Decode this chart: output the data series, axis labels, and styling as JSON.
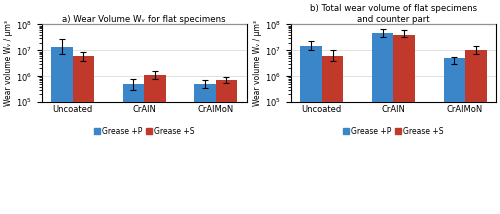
{
  "subplot_a": {
    "title": "a) Wear Volume Wᵥ for flat specimens",
    "categories": [
      "Uncoated",
      "CrAlN",
      "CrAlMoN"
    ],
    "blue_values": [
      14000000.0,
      500000.0,
      500000.0
    ],
    "red_values": [
      6000000.0,
      1100000.0,
      750000.0
    ],
    "blue_err_low": [
      7000000.0,
      200000.0,
      150000.0
    ],
    "blue_err_high": [
      14000000.0,
      300000.0,
      200000.0
    ],
    "red_err_low": [
      2000000.0,
      300000.0,
      200000.0
    ],
    "red_err_high": [
      3000000.0,
      500000.0,
      200000.0
    ],
    "ylim": [
      100000.0,
      100000000.0
    ],
    "ylabel": "Wear volume Wᵥ / µm³"
  },
  "subplot_b": {
    "title": "b) Total wear volume of flat specimens\nand counter part",
    "categories": [
      "Uncoated",
      "CrAlN",
      "CrAlMoN"
    ],
    "blue_values": [
      15000000.0,
      45000000.0,
      5000000.0
    ],
    "red_values": [
      6000000.0,
      40000000.0,
      10000000.0
    ],
    "blue_err_low": [
      5000000.0,
      12000000.0,
      2000000.0
    ],
    "blue_err_high": [
      8000000.0,
      20000000.0,
      500000.0
    ],
    "red_err_low": [
      2000000.0,
      8000000.0,
      3000000.0
    ],
    "red_err_high": [
      4000000.0,
      20000000.0,
      5000000.0
    ],
    "ylim": [
      100000.0,
      100000000.0
    ],
    "ylabel": "Wear volume Wᵥ / µm³"
  },
  "blue_color": "#3a86c8",
  "red_color": "#c0392b",
  "legend_labels": [
    "Grease +P",
    "Grease +S"
  ],
  "bar_width": 0.3,
  "capsize": 2
}
